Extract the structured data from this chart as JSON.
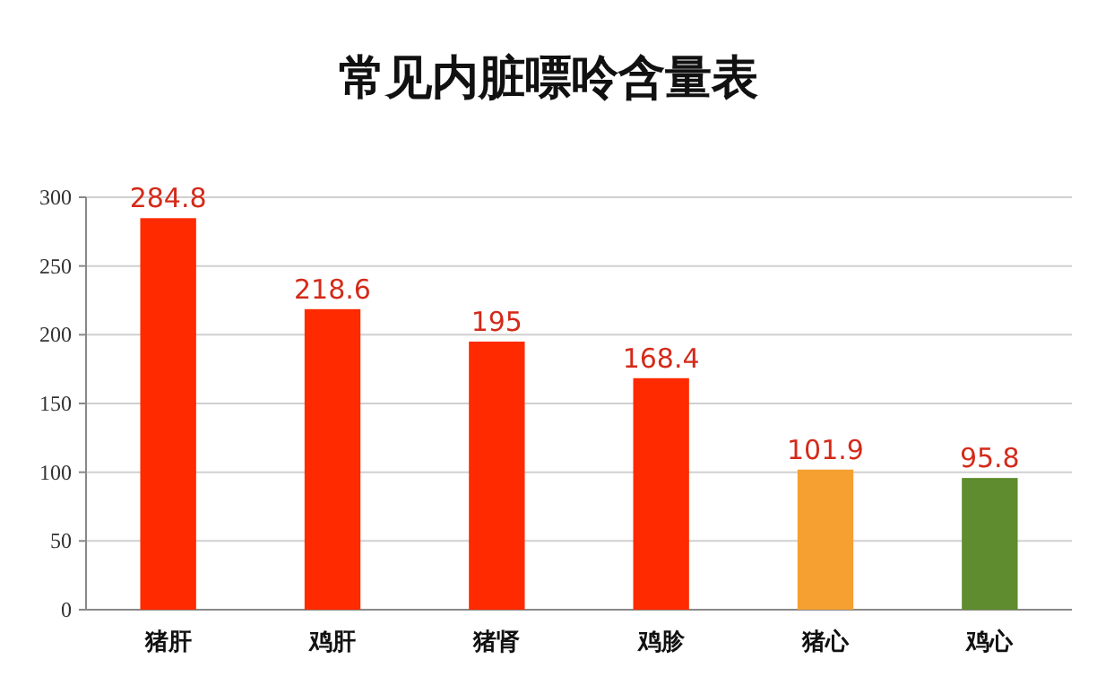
{
  "chart_data": {
    "type": "bar",
    "title": "常见内脏嘌呤含量表",
    "categories": [
      "猪肝",
      "鸡肝",
      "猪肾",
      "鸡胗",
      "猪心",
      "鸡心"
    ],
    "values": [
      284.8,
      218.6,
      195,
      168.4,
      101.9,
      95.8
    ],
    "colors": [
      "#ff2a00",
      "#ff2a00",
      "#ff2a00",
      "#ff2a00",
      "#f5a030",
      "#5e8c2e"
    ],
    "ylim": [
      0,
      300
    ],
    "yticks": [
      0,
      50,
      100,
      150,
      200,
      250,
      300
    ],
    "grid": "y",
    "data_labels": true
  }
}
